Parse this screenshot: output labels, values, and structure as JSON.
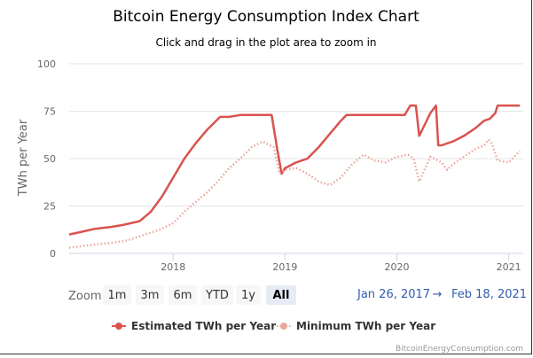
{
  "chart_data": {
    "type": "line",
    "title": "Bitcoin Energy Consumption Index Chart",
    "subtitle": "Click and drag in the plot area to zoom in",
    "ylabel": "TWh per Year",
    "xlabel": "",
    "ylim": [
      0,
      100
    ],
    "yticks": [
      0,
      25,
      50,
      75,
      100
    ],
    "xlim": [
      2017.07,
      2021.13
    ],
    "xticks": [
      {
        "value": 2018,
        "label": "2018"
      },
      {
        "value": 2019,
        "label": "2019"
      },
      {
        "value": 2020,
        "label": "2020"
      },
      {
        "value": 2021,
        "label": "2021"
      }
    ],
    "grid": true,
    "series": [
      {
        "name": "Estimated TWh per Year",
        "color": "#d9534f",
        "style": "solid",
        "x": [
          2017.07,
          2017.15,
          2017.3,
          2017.45,
          2017.55,
          2017.7,
          2017.8,
          2017.9,
          2018.0,
          2018.1,
          2018.2,
          2018.3,
          2018.42,
          2018.5,
          2018.6,
          2018.7,
          2018.8,
          2018.88,
          2018.93,
          2018.97,
          2019.0,
          2019.1,
          2019.2,
          2019.3,
          2019.4,
          2019.5,
          2019.55,
          2019.65,
          2019.75,
          2019.85,
          2019.95,
          2020.0,
          2020.07,
          2020.12,
          2020.17,
          2020.2,
          2020.25,
          2020.3,
          2020.35,
          2020.37,
          2020.4,
          2020.5,
          2020.6,
          2020.7,
          2020.78,
          2020.83,
          2020.88,
          2020.9,
          2021.0,
          2021.1
        ],
        "y": [
          10,
          11,
          13,
          14,
          15,
          17,
          22,
          30,
          40,
          50,
          58,
          65,
          72,
          72,
          73,
          73,
          73,
          73,
          55,
          42,
          45,
          48,
          50,
          56,
          63,
          70,
          73,
          73,
          73,
          73,
          73,
          73,
          73,
          78,
          78,
          62,
          68,
          74,
          78,
          57,
          57,
          59,
          62,
          66,
          70,
          71,
          74,
          78,
          78,
          78
        ]
      },
      {
        "name": "Minimum TWh per Year",
        "color": "#e8a89c",
        "style": "dotted",
        "x": [
          2017.07,
          2017.2,
          2017.35,
          2017.5,
          2017.6,
          2017.7,
          2017.8,
          2017.9,
          2018.0,
          2018.1,
          2018.2,
          2018.3,
          2018.4,
          2018.5,
          2018.6,
          2018.7,
          2018.8,
          2018.9,
          2018.95,
          2019.0,
          2019.1,
          2019.2,
          2019.3,
          2019.4,
          2019.5,
          2019.6,
          2019.7,
          2019.8,
          2019.9,
          2020.0,
          2020.1,
          2020.15,
          2020.2,
          2020.3,
          2020.4,
          2020.45,
          2020.5,
          2020.6,
          2020.7,
          2020.78,
          2020.82,
          2020.85,
          2020.9,
          2021.0,
          2021.1
        ],
        "y": [
          3,
          4,
          5,
          6,
          7,
          9,
          11,
          13,
          16,
          22,
          27,
          32,
          38,
          45,
          50,
          56,
          59,
          56,
          42,
          44,
          45,
          42,
          38,
          36,
          40,
          47,
          52,
          49,
          48,
          51,
          52,
          50,
          38,
          51,
          48,
          44,
          47,
          51,
          55,
          57,
          60,
          58,
          49,
          48,
          54
        ]
      }
    ]
  },
  "range_selector": {
    "zoom_label": "Zoom",
    "buttons": [
      "1m",
      "3m",
      "6m",
      "YTD",
      "1y",
      "All"
    ],
    "active": "All",
    "from_date": "Jan 26, 2017",
    "arrow": "→",
    "to_date": "Feb 18, 2021"
  },
  "credits": "BitcoinEnergyConsumption.com"
}
